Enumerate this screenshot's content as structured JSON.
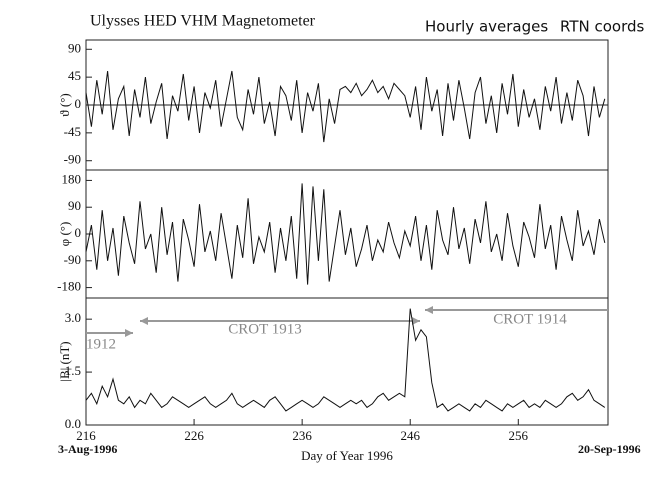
{
  "header": {
    "title": "Ulysses HED VHM Magnetometer",
    "note1": "Hourly averages",
    "note2": "RTN coords"
  },
  "chart_data": [
    {
      "type": "line",
      "ylabel": "ϑ (°)",
      "ylim": [
        -105,
        105
      ],
      "yticks": [
        90,
        45,
        0,
        -45,
        -90
      ],
      "zero_line": true,
      "x": [
        216,
        216.5,
        217,
        217.5,
        218,
        218.5,
        219,
        219.5,
        220,
        220.5,
        221,
        221.5,
        222,
        222.5,
        223,
        223.5,
        224,
        224.5,
        225,
        225.5,
        226,
        226.5,
        227,
        227.5,
        228,
        228.5,
        229,
        229.5,
        230,
        230.5,
        231,
        231.5,
        232,
        232.5,
        233,
        233.5,
        234,
        234.5,
        235,
        235.5,
        236,
        236.5,
        237,
        237.5,
        238,
        238.5,
        239,
        239.5,
        240,
        240.5,
        241,
        241.5,
        242,
        242.5,
        243,
        243.5,
        244,
        244.5,
        245,
        245.5,
        246,
        246.5,
        247,
        247.5,
        248,
        248.5,
        249,
        249.5,
        250,
        250.5,
        251,
        251.5,
        252,
        252.5,
        253,
        253.5,
        254,
        254.5,
        255,
        255.5,
        256,
        256.5,
        257,
        257.5,
        258,
        258.5,
        259,
        259.5,
        260,
        260.5,
        261,
        261.5,
        262,
        262.5,
        263,
        263.5,
        264
      ],
      "series": [
        {
          "color": "#111111",
          "values": [
            20,
            -35,
            40,
            -15,
            55,
            -40,
            10,
            30,
            -50,
            25,
            -20,
            45,
            -30,
            5,
            35,
            -55,
            15,
            -10,
            50,
            -25,
            30,
            -45,
            20,
            -5,
            40,
            -35,
            10,
            55,
            -20,
            -40,
            25,
            -15,
            45,
            -30,
            5,
            -50,
            30,
            15,
            -25,
            40,
            -45,
            20,
            -10,
            35,
            -60,
            10,
            -30,
            25,
            30,
            20,
            35,
            15,
            25,
            40,
            20,
            30,
            10,
            35,
            25,
            15,
            -20,
            30,
            -40,
            45,
            -10,
            25,
            -50,
            35,
            -25,
            40,
            -5,
            -55,
            20,
            45,
            -30,
            15,
            -45,
            35,
            -15,
            50,
            -35,
            25,
            -20,
            10,
            -40,
            30,
            -10,
            45,
            -30,
            20,
            -25,
            40,
            15,
            -50,
            30,
            -20,
            10
          ]
        }
      ]
    },
    {
      "type": "line",
      "ylabel": "φ (°)",
      "ylim": [
        -215,
        215
      ],
      "yticks": [
        180,
        90,
        0,
        -90,
        -180
      ],
      "x": [
        216,
        216.5,
        217,
        217.5,
        218,
        218.5,
        219,
        219.5,
        220,
        220.5,
        221,
        221.5,
        222,
        222.5,
        223,
        223.5,
        224,
        224.5,
        225,
        225.5,
        226,
        226.5,
        227,
        227.5,
        228,
        228.5,
        229,
        229.5,
        230,
        230.5,
        231,
        231.5,
        232,
        232.5,
        233,
        233.5,
        234,
        234.5,
        235,
        235.5,
        236,
        236.5,
        237,
        237.5,
        238,
        238.5,
        239,
        239.5,
        240,
        240.5,
        241,
        241.5,
        242,
        242.5,
        243,
        243.5,
        244,
        244.5,
        245,
        245.5,
        246,
        246.5,
        247,
        247.5,
        248,
        248.5,
        249,
        249.5,
        250,
        250.5,
        251,
        251.5,
        252,
        252.5,
        253,
        253.5,
        254,
        254.5,
        255,
        255.5,
        256,
        256.5,
        257,
        257.5,
        258,
        258.5,
        259,
        259.5,
        260,
        260.5,
        261,
        261.5,
        262,
        262.5,
        263,
        263.5,
        264
      ],
      "series": [
        {
          "color": "#111111",
          "values": [
            -60,
            30,
            -120,
            80,
            -90,
            20,
            -140,
            60,
            -30,
            -100,
            110,
            -50,
            0,
            -130,
            90,
            -70,
            40,
            -160,
            50,
            -20,
            -110,
            100,
            -60,
            10,
            -90,
            70,
            -40,
            -150,
            30,
            -80,
            120,
            -100,
            -10,
            -60,
            40,
            -130,
            20,
            -90,
            60,
            -150,
            170,
            -170,
            160,
            -90,
            150,
            -160,
            -40,
            80,
            -70,
            20,
            -110,
            -50,
            30,
            -90,
            -20,
            -60,
            40,
            -30,
            -80,
            10,
            -40,
            60,
            -90,
            30,
            -120,
            80,
            -20,
            -70,
            90,
            -50,
            20,
            -100,
            50,
            -30,
            110,
            -60,
            0,
            -90,
            70,
            -40,
            -110,
            40,
            -10,
            -80,
            100,
            -50,
            30,
            -120,
            60,
            -20,
            -90,
            80,
            -40,
            10,
            -70,
            50,
            -30
          ]
        }
      ]
    },
    {
      "type": "line",
      "ylabel": "|B| (nT)",
      "ylim": [
        0,
        3.6
      ],
      "yticks": [
        {
          "value": 3,
          "label": "3.0"
        },
        1.5,
        {
          "value": 0,
          "label": "0.0"
        }
      ],
      "xlabel": "Day of Year 1996",
      "xlim": [
        216,
        264.3
      ],
      "xticks": [
        216,
        226,
        236,
        246,
        256
      ],
      "start_date": "3-Aug-1996",
      "end_date": "20-Sep-1996",
      "annotations": [
        "1912",
        "CROT 1913",
        "CROT 1914"
      ],
      "x": [
        216,
        216.5,
        217,
        217.5,
        218,
        218.5,
        219,
        219.5,
        220,
        220.5,
        221,
        221.5,
        222,
        222.5,
        223,
        223.5,
        224,
        224.5,
        225,
        225.5,
        226,
        226.5,
        227,
        227.5,
        228,
        228.5,
        229,
        229.5,
        230,
        230.5,
        231,
        231.5,
        232,
        232.5,
        233,
        233.5,
        234,
        234.5,
        235,
        235.5,
        236,
        236.5,
        237,
        237.5,
        238,
        238.5,
        239,
        239.5,
        240,
        240.5,
        241,
        241.5,
        242,
        242.5,
        243,
        243.5,
        244,
        244.5,
        245,
        245.5,
        246,
        246.5,
        247,
        247.5,
        248,
        248.5,
        249,
        249.5,
        250,
        250.5,
        251,
        251.5,
        252,
        252.5,
        253,
        253.5,
        254,
        254.5,
        255,
        255.5,
        256,
        256.5,
        257,
        257.5,
        258,
        258.5,
        259,
        259.5,
        260,
        260.5,
        261,
        261.5,
        262,
        262.5,
        263,
        263.5,
        264
      ],
      "series": [
        {
          "color": "#111111",
          "values": [
            0.7,
            0.9,
            0.6,
            1.1,
            0.8,
            1.3,
            0.7,
            0.6,
            0.8,
            0.5,
            0.7,
            0.6,
            0.9,
            0.7,
            0.5,
            0.6,
            0.8,
            0.7,
            0.6,
            0.5,
            0.6,
            0.7,
            0.8,
            0.6,
            0.5,
            0.6,
            0.7,
            0.9,
            0.6,
            0.5,
            0.6,
            0.7,
            0.6,
            0.5,
            0.7,
            0.8,
            0.6,
            0.4,
            0.5,
            0.6,
            0.7,
            0.6,
            0.5,
            0.6,
            0.8,
            0.7,
            0.6,
            0.5,
            0.6,
            0.7,
            0.6,
            0.7,
            0.5,
            0.6,
            0.8,
            0.9,
            0.7,
            0.8,
            0.9,
            0.8,
            3.3,
            2.4,
            2.7,
            2.5,
            1.2,
            0.5,
            0.6,
            0.4,
            0.5,
            0.6,
            0.5,
            0.4,
            0.6,
            0.5,
            0.7,
            0.6,
            0.5,
            0.4,
            0.6,
            0.5,
            0.6,
            0.7,
            0.5,
            0.6,
            0.5,
            0.7,
            0.6,
            0.5,
            0.6,
            0.8,
            0.9,
            0.7,
            0.8,
            1.0,
            0.7,
            0.6,
            0.5
          ]
        }
      ]
    }
  ]
}
